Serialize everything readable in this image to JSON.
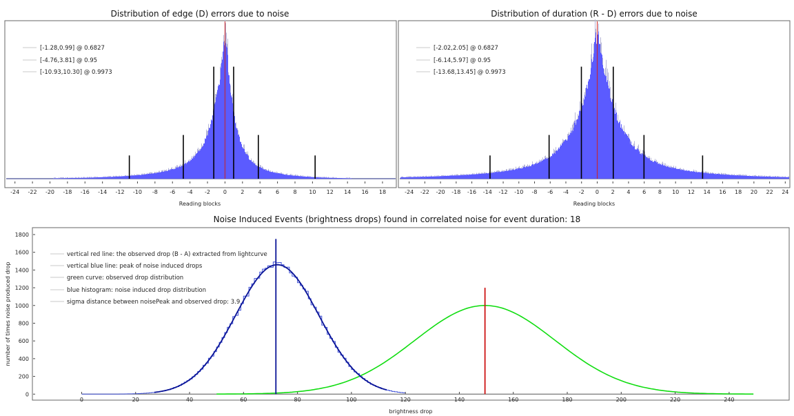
{
  "chart_data": [
    {
      "type": "bar",
      "title": "Distribution of edge (D) errors due to noise",
      "xlabel": "Reading blocks",
      "ylabel": "",
      "xlim": [
        -25,
        19.5
      ],
      "xticks": [
        -24,
        -22,
        -20,
        -18,
        -16,
        -14,
        -12,
        -10,
        -8,
        -6,
        -4,
        -2,
        0,
        2,
        4,
        6,
        8,
        10,
        12,
        14,
        16,
        18
      ],
      "grid": false,
      "legend_position": "top-left",
      "legend": [
        "[-1.28,0.99] @ 0.6827",
        "[-4.76,3.81] @ 0.95",
        "[-10.93,10.30] @ 0.9973"
      ],
      "histogram": {
        "color": "#5b5bff",
        "peak_at": 0,
        "left_scale": 1.5,
        "right_scale": 1.1
      },
      "center_line": {
        "x": 0,
        "color": "#cc2222"
      },
      "interval_markers": [
        {
          "x": -1.28,
          "rel_height": 0.82
        },
        {
          "x": 0.99,
          "rel_height": 0.82
        },
        {
          "x": -4.76,
          "rel_height": 0.32
        },
        {
          "x": 3.81,
          "rel_height": 0.32
        },
        {
          "x": -10.93,
          "rel_height": 0.17
        },
        {
          "x": 10.3,
          "rel_height": 0.17
        }
      ]
    },
    {
      "type": "bar",
      "title": "Distribution of duration (R - D) errors due to noise",
      "xlabel": "Reading blocks",
      "ylabel": "",
      "xlim": [
        -25.2,
        24.5
      ],
      "xticks": [
        -24,
        -22,
        -20,
        -18,
        -16,
        -14,
        -12,
        -10,
        -8,
        -6,
        -4,
        -2,
        0,
        2,
        4,
        6,
        8,
        10,
        12,
        14,
        16,
        18,
        20,
        22,
        24
      ],
      "grid": false,
      "legend_position": "top-left",
      "legend": [
        "[-2.02,2.05] @ 0.6827",
        "[-6.14,5.97] @ 0.95",
        "[-13.68,13.45] @ 0.9973"
      ],
      "histogram": {
        "color": "#5b5bff",
        "peak_at": 0,
        "left_scale": 2.6,
        "right_scale": 2.6
      },
      "center_line": {
        "x": 0,
        "color": "#cc2222"
      },
      "interval_markers": [
        {
          "x": -2.02,
          "rel_height": 0.82
        },
        {
          "x": 2.05,
          "rel_height": 0.82
        },
        {
          "x": -6.14,
          "rel_height": 0.32
        },
        {
          "x": 5.97,
          "rel_height": 0.32
        },
        {
          "x": -13.68,
          "rel_height": 0.17
        },
        {
          "x": 13.45,
          "rel_height": 0.17
        }
      ]
    },
    {
      "type": "line",
      "title": "Noise Induced Events (brightness drops) found in correlated noise for event duration: 18",
      "xlabel": "brightness drop",
      "ylabel": "number of times noise produced drop",
      "xlim": [
        -18,
        262
      ],
      "ylim": [
        -60,
        1870
      ],
      "xticks": [
        0,
        20,
        40,
        60,
        80,
        100,
        120,
        140,
        160,
        180,
        200,
        220,
        240
      ],
      "yticks": [
        0,
        200,
        400,
        600,
        800,
        1000,
        1200,
        1400,
        1600,
        1800
      ],
      "grid": false,
      "legend_position": "top-left",
      "legend": [
        "vertical red line: the observed drop (B - A) extracted from lightcurve",
        "vertical blue line: peak of noise induced drops",
        "green curve: observed drop distribution",
        "blue histogram: noise induced drop distribution",
        "sigma distance between noisePeak and observed drop: 3.9"
      ],
      "series": [
        {
          "name": "blue histogram: noise induced drop distribution",
          "kind": "histogram",
          "color": "#3d4fd6",
          "mean": 72.5,
          "sigma": 15.5,
          "peak": 1460,
          "x_range": [
            0,
            120
          ]
        },
        {
          "name": "blue fit",
          "kind": "curve",
          "color": "#0a1496",
          "mean": 72.5,
          "sigma": 15.5,
          "peak": 1460,
          "x_range": [
            27,
            113
          ]
        },
        {
          "name": "green curve: observed drop distribution",
          "kind": "curve",
          "color": "#11dd11",
          "mean": 149.5,
          "sigma": 26,
          "peak": 1000,
          "x_range": [
            50,
            249
          ]
        }
      ],
      "baseline": {
        "x_range": [
          0,
          249
        ],
        "color": "#555555"
      },
      "vlines": [
        {
          "name": "vertical blue line: peak of noise induced drops",
          "x": 72,
          "y_top": 1750,
          "color": "#0a1496"
        },
        {
          "name": "vertical red line: the observed drop (B - A) extracted from lightcurve",
          "x": 149.5,
          "y_top": 1200,
          "color": "#cc1111"
        }
      ]
    }
  ]
}
